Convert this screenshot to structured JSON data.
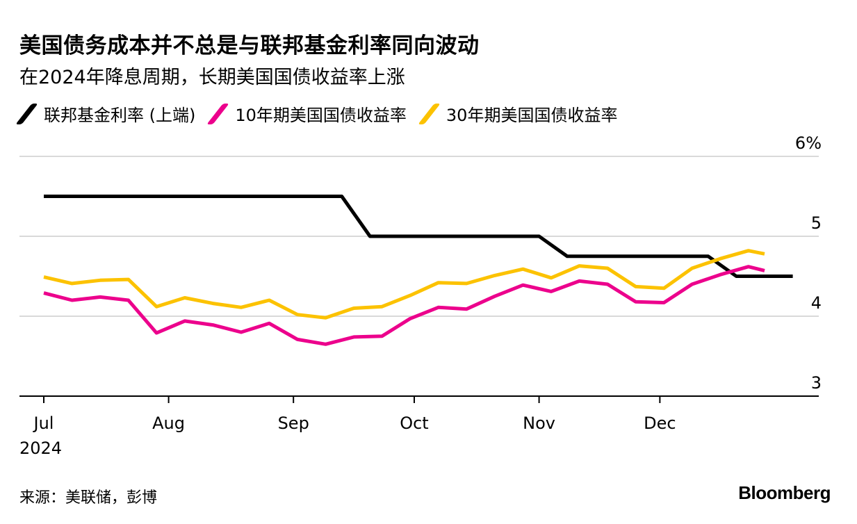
{
  "header": {
    "title": "美国债务成本并不总是与联邦基金利率同向波动",
    "subtitle": "在2024年降息周期，长期美国国债收益率上涨"
  },
  "legend": [
    {
      "label": "联邦基金利率 (上端)",
      "color": "#000000"
    },
    {
      "label": "10年期美国国债收益率",
      "color": "#ec008c"
    },
    {
      "label": "30年期美国国债收益率",
      "color": "#fcc200"
    }
  ],
  "footer": {
    "source": "来源：美联储，彭博",
    "brand": "Bloomberg"
  },
  "chart_data": {
    "type": "line",
    "y_axis": {
      "min": 3,
      "max": 6,
      "ticks": [
        3,
        4,
        5,
        6
      ],
      "tick_labels": [
        "3",
        "4",
        "5",
        "6%"
      ],
      "position": "right"
    },
    "x_axis": {
      "ticks": [
        {
          "date": "2024-07-01",
          "label": "Jul",
          "sublabel": "2024"
        },
        {
          "date": "2024-08-01",
          "label": "Aug"
        },
        {
          "date": "2024-09-01",
          "label": "Sep"
        },
        {
          "date": "2024-10-01",
          "label": "Oct"
        },
        {
          "date": "2024-11-01",
          "label": "Nov"
        },
        {
          "date": "2024-12-01",
          "label": "Dec"
        }
      ],
      "range": [
        "2024-06-25",
        "2025-01-14"
      ]
    },
    "grid": true,
    "series": [
      {
        "name": "联邦基金利率 (上端)",
        "color": "#000000",
        "step": true,
        "points": [
          [
            "2024-07-01",
            5.5
          ],
          [
            "2024-09-13",
            5.5
          ],
          [
            "2024-09-20",
            5.0
          ],
          [
            "2024-11-01",
            5.0
          ],
          [
            "2024-11-08",
            4.75
          ],
          [
            "2024-12-13",
            4.75
          ],
          [
            "2024-12-20",
            4.5
          ],
          [
            "2025-01-03",
            4.5
          ]
        ]
      },
      {
        "name": "10年期美国国债收益率",
        "color": "#ec008c",
        "points": [
          [
            "2024-07-01",
            4.29
          ],
          [
            "2024-07-08",
            4.2
          ],
          [
            "2024-07-15",
            4.24
          ],
          [
            "2024-07-22",
            4.2
          ],
          [
            "2024-07-29",
            3.79
          ],
          [
            "2024-08-05",
            3.94
          ],
          [
            "2024-08-12",
            3.89
          ],
          [
            "2024-08-19",
            3.8
          ],
          [
            "2024-08-26",
            3.91
          ],
          [
            "2024-09-02",
            3.71
          ],
          [
            "2024-09-09",
            3.65
          ],
          [
            "2024-09-16",
            3.74
          ],
          [
            "2024-09-23",
            3.75
          ],
          [
            "2024-09-30",
            3.97
          ],
          [
            "2024-10-07",
            4.11
          ],
          [
            "2024-10-14",
            4.09
          ],
          [
            "2024-10-21",
            4.25
          ],
          [
            "2024-10-28",
            4.39
          ],
          [
            "2024-11-04",
            4.31
          ],
          [
            "2024-11-11",
            4.44
          ],
          [
            "2024-11-18",
            4.4
          ],
          [
            "2024-11-25",
            4.18
          ],
          [
            "2024-12-02",
            4.17
          ],
          [
            "2024-12-09",
            4.4
          ],
          [
            "2024-12-16",
            4.52
          ],
          [
            "2024-12-23",
            4.62
          ],
          [
            "2024-12-27",
            4.57
          ]
        ]
      },
      {
        "name": "30年期美国国债收益率",
        "color": "#fcc200",
        "points": [
          [
            "2024-07-01",
            4.49
          ],
          [
            "2024-07-08",
            4.41
          ],
          [
            "2024-07-15",
            4.45
          ],
          [
            "2024-07-22",
            4.46
          ],
          [
            "2024-07-29",
            4.12
          ],
          [
            "2024-08-05",
            4.23
          ],
          [
            "2024-08-12",
            4.16
          ],
          [
            "2024-08-19",
            4.11
          ],
          [
            "2024-08-26",
            4.2
          ],
          [
            "2024-09-02",
            4.02
          ],
          [
            "2024-09-09",
            3.98
          ],
          [
            "2024-09-16",
            4.1
          ],
          [
            "2024-09-23",
            4.12
          ],
          [
            "2024-09-30",
            4.26
          ],
          [
            "2024-10-07",
            4.42
          ],
          [
            "2024-10-14",
            4.41
          ],
          [
            "2024-10-21",
            4.51
          ],
          [
            "2024-10-28",
            4.59
          ],
          [
            "2024-11-04",
            4.48
          ],
          [
            "2024-11-11",
            4.63
          ],
          [
            "2024-11-18",
            4.6
          ],
          [
            "2024-11-25",
            4.37
          ],
          [
            "2024-12-02",
            4.35
          ],
          [
            "2024-12-09",
            4.6
          ],
          [
            "2024-12-16",
            4.72
          ],
          [
            "2024-12-23",
            4.82
          ],
          [
            "2024-12-27",
            4.78
          ]
        ]
      }
    ]
  }
}
